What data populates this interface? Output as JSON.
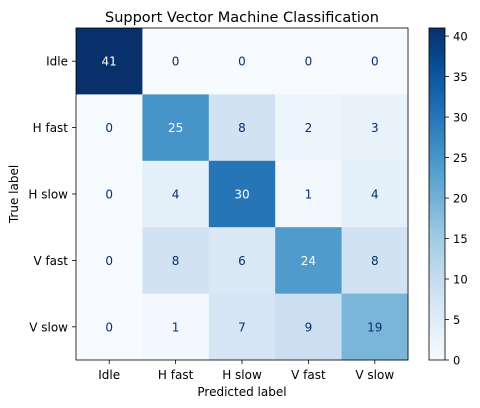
{
  "chart_data": {
    "type": "heatmap",
    "title": "Support Vector Machine Classification",
    "xlabel": "Predicted label",
    "ylabel": "True label",
    "x_categories": [
      "Idle",
      "H fast",
      "H slow",
      "V fast",
      "V slow"
    ],
    "y_categories": [
      "Idle",
      "H fast",
      "H slow",
      "V fast",
      "V slow"
    ],
    "values": [
      [
        41,
        0,
        0,
        0,
        0
      ],
      [
        0,
        25,
        8,
        2,
        3
      ],
      [
        0,
        4,
        30,
        1,
        4
      ],
      [
        0,
        8,
        6,
        24,
        8
      ],
      [
        0,
        1,
        7,
        9,
        19
      ]
    ],
    "colorbar": {
      "colormap": "Blues",
      "range": [
        0,
        41
      ],
      "ticks": [
        0,
        5,
        10,
        15,
        20,
        25,
        30,
        35,
        40
      ]
    },
    "colors": {
      "low_cell_text": "#08306b",
      "high_cell_text": "#ffffff"
    }
  }
}
